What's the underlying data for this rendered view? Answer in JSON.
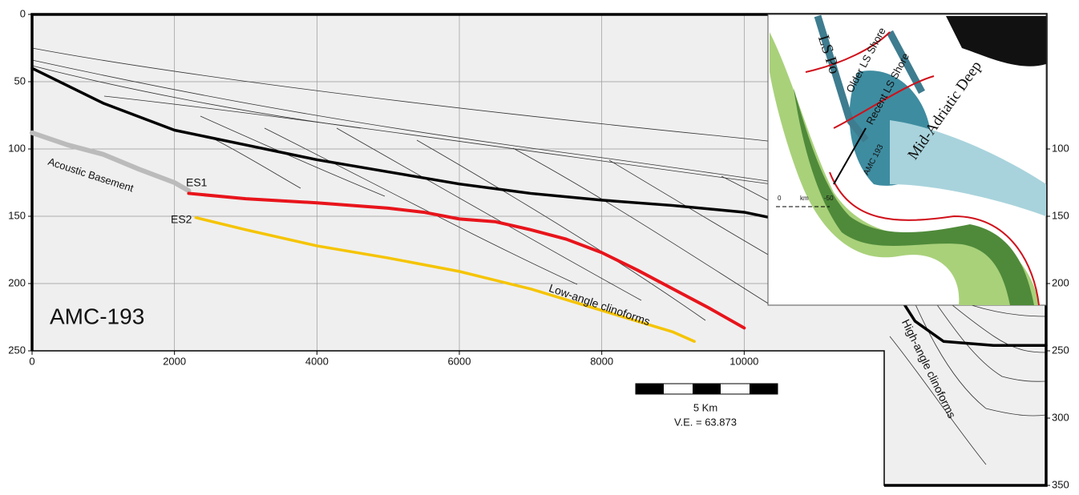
{
  "chart_data": {
    "type": "line",
    "title": "AMC-193",
    "xlim": [
      0,
      14240
    ],
    "xticks": [
      0,
      2000,
      4000,
      6000,
      8000,
      10000
    ],
    "ylim": [
      0,
      350
    ],
    "y_reversed": true,
    "yticks": [
      0,
      50,
      100,
      150,
      200,
      250
    ],
    "y2lim": [
      0,
      350
    ],
    "y2ticks": [
      100,
      150,
      200,
      250,
      300,
      350
    ],
    "grid": true,
    "series": [
      {
        "color": "#000000",
        "x": [
          0,
          1000,
          2000,
          3000,
          4000,
          5000,
          6000,
          7000,
          8000,
          9000,
          10000,
          11000,
          11600,
          12000,
          12400,
          12800,
          13500,
          14240
        ],
        "values": [
          40,
          66,
          86,
          97,
          108,
          117,
          126,
          133,
          138,
          142,
          147,
          158,
          170,
          195,
          228,
          243,
          246,
          246
        ]
      },
      {
        "name": "Acoustic Basement",
        "color": "#bbbbbb",
        "x": [
          0,
          500,
          1000,
          1500,
          2000,
          2200
        ],
        "values": [
          88,
          97,
          104,
          115,
          125,
          131
        ]
      },
      {
        "name": "ES1",
        "color": "#e8141b",
        "x": [
          2200,
          3000,
          4000,
          5000,
          5500,
          6000,
          6500,
          7000,
          7500,
          8000,
          8500,
          9000,
          9500,
          10000
        ],
        "values": [
          133,
          137,
          140,
          144,
          147,
          152,
          154,
          160,
          167,
          177,
          190,
          204,
          218,
          233
        ]
      },
      {
        "name": "ES2",
        "color": "#f5c400",
        "x": [
          2300,
          3000,
          4000,
          5000,
          6000,
          7000,
          8000,
          9000,
          9300
        ],
        "values": [
          151,
          160,
          172,
          181,
          191,
          204,
          220,
          236,
          243
        ]
      }
    ],
    "annotations": {
      "low_angle": "Low-angle clinoforms",
      "high_angle": "High-angle clinoforms"
    },
    "scale_bar": {
      "label": "5 Km",
      "ve": "V.E. = 63.873"
    }
  },
  "inset_map": {
    "labels": [
      "LS Po",
      "Older LS Shore",
      "Recent LS Shore",
      "Mid-Adriatic Deep",
      "AMC 193"
    ],
    "scale": [
      "0",
      "km",
      "-50"
    ]
  }
}
